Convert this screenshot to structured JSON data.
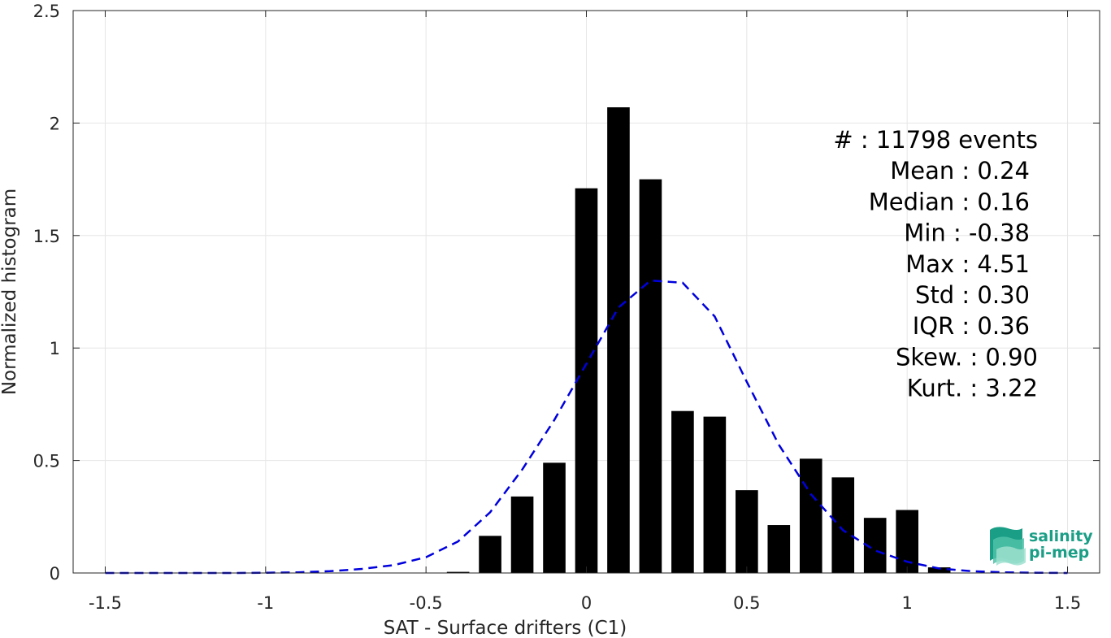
{
  "chart_data": {
    "type": "bar",
    "xlabel": "SAT - Surface drifters (C1)",
    "ylabel": "Normalized histogram",
    "xlim": [
      -1.6,
      1.6
    ],
    "ylim": [
      0,
      2.5
    ],
    "x_ticks": [
      -1.5,
      -1,
      -0.5,
      0,
      0.5,
      1,
      1.5
    ],
    "x_tick_labels": [
      "-1.5",
      "-1",
      "-0.5",
      "0",
      "0.5",
      "1",
      "1.5"
    ],
    "y_ticks": [
      0,
      0.5,
      1,
      1.5,
      2,
      2.5
    ],
    "y_tick_labels": [
      "0",
      "0.5",
      "1",
      "1.5",
      "2",
      "2.5"
    ],
    "grid": true,
    "bar_width": 0.07,
    "bar_color": "#000000",
    "bars": {
      "x": [
        -0.4,
        -0.3,
        -0.2,
        -0.1,
        0.0,
        0.1,
        0.2,
        0.3,
        0.4,
        0.5,
        0.6,
        0.7,
        0.8,
        0.9,
        1.0,
        1.1
      ],
      "values": [
        0.005,
        0.165,
        0.34,
        0.49,
        1.71,
        2.07,
        1.75,
        0.72,
        0.695,
        0.368,
        0.213,
        0.508,
        0.425,
        0.245,
        0.28,
        0.025
      ]
    },
    "fit_curve": {
      "style": "dashed",
      "color": "#0000dd",
      "x": [
        -1.5,
        -1.4,
        -1.3,
        -1.2,
        -1.1,
        -1.0,
        -0.9,
        -0.8,
        -0.7,
        -0.6,
        -0.5,
        -0.4,
        -0.3,
        -0.2,
        -0.1,
        0.0,
        0.1,
        0.2,
        0.3,
        0.4,
        0.5,
        0.6,
        0.7,
        0.8,
        0.9,
        1.0,
        1.1,
        1.2,
        1.3,
        1.4,
        1.5
      ],
      "y": [
        0,
        0,
        0,
        0,
        0,
        0.001,
        0.003,
        0.008,
        0.018,
        0.035,
        0.07,
        0.14,
        0.27,
        0.46,
        0.68,
        0.93,
        1.18,
        1.3,
        1.29,
        1.14,
        0.85,
        0.57,
        0.35,
        0.19,
        0.1,
        0.05,
        0.02,
        0.008,
        0.003,
        0.001,
        0
      ]
    },
    "stats": [
      "#  : 11798 events",
      "Mean : 0.24",
      "Median : 0.16",
      "Min : -0.38",
      "Max : 4.51",
      "Std : 0.30",
      "IQR : 0.36",
      "Skew. : 0.90",
      "Kurt. : 3.22"
    ]
  },
  "logo": {
    "line1": "salinity",
    "line2": "pi-mep"
  },
  "colors": {
    "axis": "#262626",
    "grid": "#e6e6e6",
    "logo": "#1a9e86"
  }
}
